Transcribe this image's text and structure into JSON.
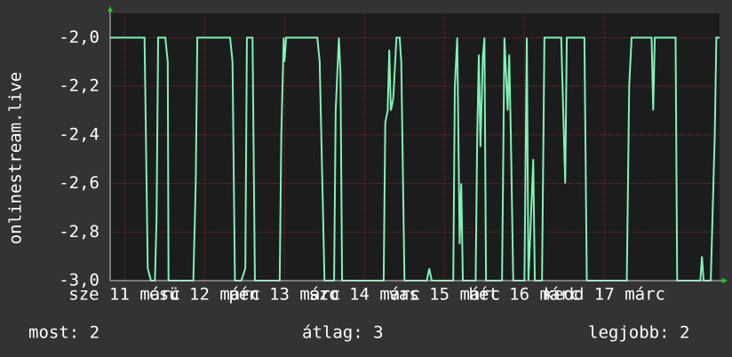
{
  "chart_data": {
    "type": "line",
    "y_label": "onlinestream.live",
    "x": [
      0,
      0.43,
      0.47,
      0.51,
      0.56,
      0.58,
      0.6,
      0.69,
      0.72,
      0.73,
      1.04,
      1.07,
      1.09,
      1.5,
      1.53,
      1.56,
      1.64,
      1.69,
      1.71,
      1.78,
      1.81,
      2.12,
      2.14,
      2.17,
      2.18,
      2.2,
      2.59,
      2.62,
      2.68,
      2.8,
      2.82,
      2.86,
      2.88,
      2.9,
      3.42,
      3.44,
      3.47,
      3.49,
      3.51,
      3.54,
      3.58,
      3.62,
      3.64,
      3.68,
      3.96,
      3.99,
      4.02,
      4.29,
      4.31,
      4.34,
      4.37,
      4.39,
      4.41,
      4.57,
      4.59,
      4.61,
      4.63,
      4.66,
      4.68,
      4.7,
      4.9,
      4.93,
      4.97,
      4.99,
      5.01,
      5.04,
      5.18,
      5.21,
      5.23,
      5.29,
      5.31,
      5.4,
      5.43,
      5.64,
      5.69,
      5.71,
      5.93,
      5.96,
      6.46,
      6.49,
      6.52,
      6.77,
      6.79,
      6.81,
      7.07,
      7.09,
      7.38,
      7.4,
      7.42,
      7.51,
      7.56,
      7.58,
      7.62
    ],
    "values": [
      -2.0,
      -2.0,
      -2.95,
      -3.0,
      -3.0,
      -2.75,
      -2.0,
      -2.0,
      -2.1,
      -3.0,
      -3.0,
      -2.6,
      -2.0,
      -2.0,
      -2.1,
      -3.0,
      -3.0,
      -2.95,
      -2.0,
      -2.0,
      -3.0,
      -3.0,
      -2.4,
      -2.0,
      -2.1,
      -2.0,
      -2.0,
      -2.1,
      -3.0,
      -3.0,
      -2.3,
      -2.0,
      -2.15,
      -3.0,
      -3.0,
      -2.35,
      -2.3,
      -2.05,
      -2.3,
      -2.25,
      -2.0,
      -2.0,
      -2.1,
      -3.0,
      -3.0,
      -2.95,
      -3.0,
      -3.0,
      -2.2,
      -2.0,
      -2.85,
      -2.6,
      -3.0,
      -3.0,
      -2.4,
      -2.07,
      -2.45,
      -2.08,
      -2.0,
      -3.0,
      -3.0,
      -2.0,
      -2.3,
      -2.07,
      -2.4,
      -3.0,
      -3.0,
      -2.0,
      -3.0,
      -2.5,
      -3.0,
      -3.0,
      -2.0,
      -2.0,
      -2.6,
      -2.0,
      -2.0,
      -3.0,
      -3.0,
      -2.2,
      -2.0,
      -2.0,
      -2.3,
      -2.0,
      -2.0,
      -3.0,
      -3.0,
      -2.9,
      -3.0,
      -3.0,
      -2.4,
      -2.0,
      -2.0
    ],
    "color": "#7ff2b4",
    "xlim": [
      0,
      7.62
    ],
    "ylim": [
      -3.0,
      -1.9
    ],
    "xticks": [
      {
        "value": 0.18,
        "label": "sze 11 márc"
      },
      {
        "value": 1.18,
        "label": "csü 12 márc"
      },
      {
        "value": 2.18,
        "label": "pén 13 márc"
      },
      {
        "value": 3.18,
        "label": "szo 14 márc"
      },
      {
        "value": 4.18,
        "label": "vas 15 márc"
      },
      {
        "value": 5.18,
        "label": "hét 16 márc"
      },
      {
        "value": 6.18,
        "label": "kedd 17 márc"
      }
    ],
    "yticks": [
      {
        "value": -3.0,
        "label": "-3,0"
      },
      {
        "value": -2.8,
        "label": "-2,8"
      },
      {
        "value": -2.6,
        "label": "-2,6"
      },
      {
        "value": -2.4,
        "label": "-2,4"
      },
      {
        "value": -2.2,
        "label": "-2,2"
      },
      {
        "value": -2.0,
        "label": "-2,0"
      }
    ],
    "grid": true,
    "stats": [
      "most: 2",
      "átlag: 3",
      "legjobb: 2"
    ]
  }
}
